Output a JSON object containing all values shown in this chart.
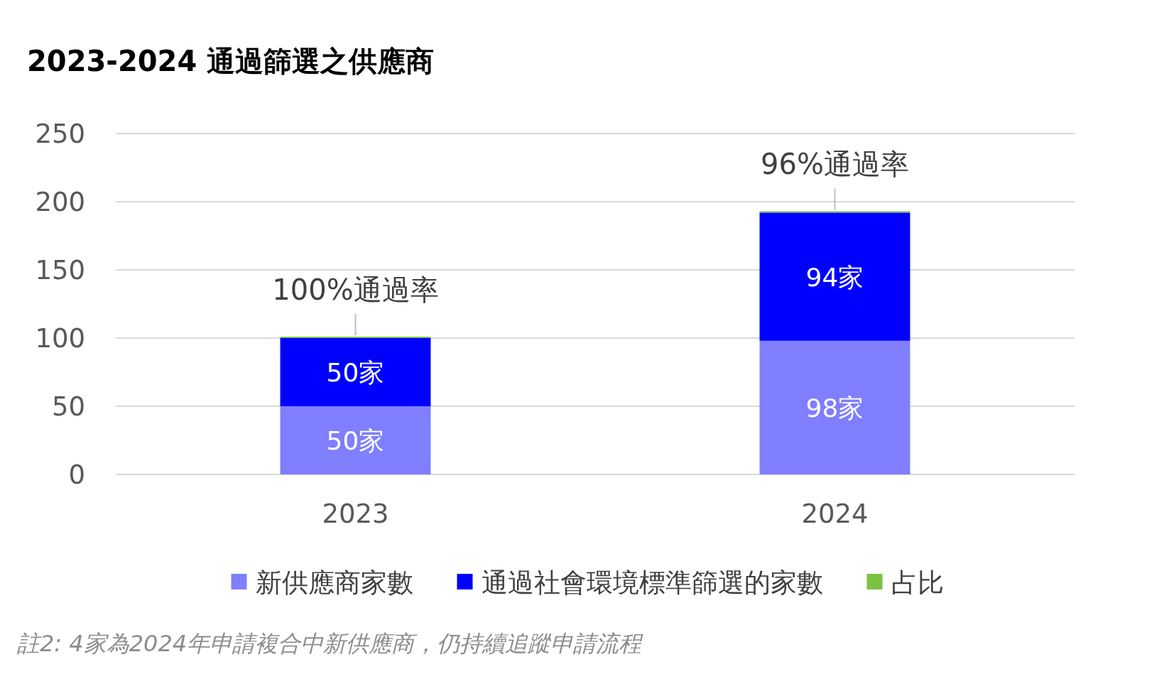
{
  "chart_data": {
    "type": "bar",
    "title": "2023-2024 通過篩選之供應商",
    "categories": [
      "2023",
      "2024"
    ],
    "stacked": true,
    "series": [
      {
        "name": "新供應商家數",
        "color": "#7f7fff",
        "values": [
          50,
          98
        ],
        "value_labels": [
          "50家",
          "98家"
        ]
      },
      {
        "name": "通過社會環境標準篩選的家數",
        "color": "#0000ff",
        "values": [
          50,
          94
        ],
        "value_labels": [
          "50家",
          "94家"
        ]
      },
      {
        "name": "占比",
        "color": "#7cc242",
        "values": [
          1,
          1
        ]
      }
    ],
    "ylim": [
      0,
      250
    ],
    "yticks": [
      0,
      50,
      100,
      150,
      200,
      250
    ],
    "grid": "y",
    "legend": "bottom",
    "annotations": [
      {
        "text": "100%通過率",
        "x": "2023",
        "y": 101
      },
      {
        "text": "96%通過率",
        "x": "2024",
        "y": 193
      },
      "註2: 4家為2024年申請複合中新供應商，仍持續追蹤申請流程"
    ]
  }
}
